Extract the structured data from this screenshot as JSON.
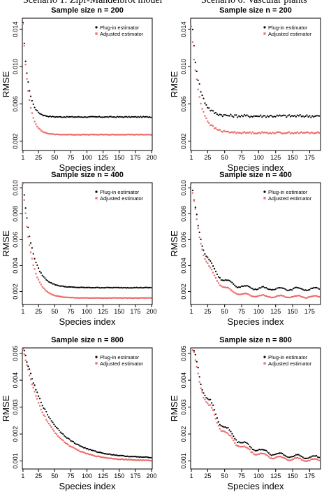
{
  "figure": {
    "column_headers": [
      "Scenario 1: Zipf-Mandelbrot model",
      "Scenario 6: Vascular plants"
    ]
  },
  "colors": {
    "plugin": "#000000",
    "adjusted": "#ee6a6a"
  },
  "chart_data": [
    {
      "type": "scatter",
      "title": "Sample size n = 200",
      "xlabel": "Species index",
      "ylabel": "RMSE",
      "xlim": [
        0,
        201
      ],
      "ylim": [
        0.001,
        0.0152
      ],
      "xticks": [
        1,
        25,
        50,
        75,
        100,
        125,
        150,
        175,
        200
      ],
      "yticks": [
        0.002,
        0.006,
        0.01,
        0.014
      ],
      "legend_position": "top-right",
      "series": [
        {
          "name": "Plug-in estimator",
          "marker": "dot",
          "curve": {
            "x_start": 1,
            "x_end": 200,
            "step": 2,
            "a": 0.0046,
            "b": 0.01,
            "tau": 8.0,
            "pattern": "smooth"
          }
        },
        {
          "name": "Adjusted estimator",
          "marker": "square",
          "curve": {
            "x_start": 1,
            "x_end": 200,
            "step": 2,
            "a": 0.0027,
            "b": 0.012,
            "tau": 8.5,
            "pattern": "smooth"
          }
        }
      ]
    },
    {
      "type": "scatter",
      "title": "Sample size n = 200",
      "xlabel": "Species index",
      "ylabel": "RMSE",
      "xlim": [
        0,
        191
      ],
      "ylim": [
        0.001,
        0.0152
      ],
      "xticks": [
        1,
        25,
        50,
        75,
        100,
        125,
        150,
        175
      ],
      "yticks": [
        0.002,
        0.006,
        0.01,
        0.014
      ],
      "legend_position": "top-right",
      "series": [
        {
          "name": "Plug-in estimator",
          "marker": "dot",
          "curve": {
            "x_start": 1,
            "x_end": 190,
            "step": 2,
            "a": 0.0047,
            "b": 0.011,
            "tau": 10.0,
            "pattern": "noisy"
          }
        },
        {
          "name": "Adjusted estimator",
          "marker": "square",
          "curve": {
            "x_start": 1,
            "x_end": 190,
            "step": 2,
            "a": 0.0029,
            "b": 0.0115,
            "tau": 11.0,
            "pattern": "noisy"
          }
        }
      ]
    },
    {
      "type": "scatter",
      "title": "Sample size n = 400",
      "xlabel": "Species index",
      "ylabel": "RMSE",
      "xlim": [
        0,
        201
      ],
      "ylim": [
        0.001,
        0.0104
      ],
      "xticks": [
        1,
        25,
        50,
        75,
        100,
        125,
        150,
        175,
        200
      ],
      "yticks": [
        0.002,
        0.004,
        0.006,
        0.008,
        0.01
      ],
      "legend_position": "top-right",
      "series": [
        {
          "name": "Plug-in estimator",
          "marker": "dot",
          "curve": {
            "x_start": 1,
            "x_end": 200,
            "step": 2,
            "a": 0.0023,
            "b": 0.0082,
            "tau": 14.0,
            "pattern": "smooth"
          }
        },
        {
          "name": "Adjusted estimator",
          "marker": "square",
          "curve": {
            "x_start": 1,
            "x_end": 200,
            "step": 2,
            "a": 0.0015,
            "b": 0.0088,
            "tau": 13.0,
            "pattern": "smooth"
          }
        }
      ]
    },
    {
      "type": "scatter",
      "title": "Sample size n = 400",
      "xlabel": "Species index",
      "ylabel": "RMSE",
      "xlim": [
        0,
        191
      ],
      "ylim": [
        0.001,
        0.0104
      ],
      "xticks": [
        1,
        25,
        50,
        75,
        100,
        125,
        150,
        175
      ],
      "yticks": [
        0.002,
        0.004,
        0.006,
        0.008,
        0.01
      ],
      "legend_position": "top-right",
      "series": [
        {
          "name": "Plug-in estimator",
          "marker": "dot",
          "curve": {
            "x_start": 1,
            "x_end": 190,
            "step": 2,
            "a": 0.0022,
            "b": 0.008,
            "tau": 20.0,
            "pattern": "stepped"
          }
        },
        {
          "name": "Adjusted estimator",
          "marker": "square",
          "curve": {
            "x_start": 1,
            "x_end": 190,
            "step": 2,
            "a": 0.0016,
            "b": 0.0085,
            "tau": 20.0,
            "pattern": "stepped"
          }
        }
      ]
    },
    {
      "type": "scatter",
      "title": "Sample size n = 800",
      "xlabel": "Species index",
      "ylabel": "RMSE",
      "xlim": [
        0,
        201
      ],
      "ylim": [
        0.0007,
        0.0052
      ],
      "xticks": [
        1,
        25,
        50,
        75,
        100,
        125,
        150,
        175,
        200
      ],
      "yticks": [
        0.001,
        0.002,
        0.003,
        0.004,
        0.005
      ],
      "legend_position": "top-right",
      "series": [
        {
          "name": "Plug-in estimator",
          "marker": "dot",
          "curve": {
            "x_start": 1,
            "x_end": 200,
            "step": 2,
            "a": 0.0011,
            "b": 0.0042,
            "tau": 40.0,
            "pattern": "smooth"
          }
        },
        {
          "name": "Adjusted estimator",
          "marker": "square",
          "curve": {
            "x_start": 1,
            "x_end": 200,
            "step": 2,
            "a": 0.001,
            "b": 0.0042,
            "tau": 36.0,
            "pattern": "smooth"
          }
        }
      ]
    },
    {
      "type": "scatter",
      "title": "Sample size n = 800",
      "xlabel": "Species index",
      "ylabel": "RMSE",
      "xlim": [
        0,
        191
      ],
      "ylim": [
        0.0007,
        0.0052
      ],
      "xticks": [
        1,
        25,
        50,
        75,
        100,
        125,
        150,
        175
      ],
      "yticks": [
        0.001,
        0.002,
        0.003,
        0.004,
        0.005
      ],
      "legend_position": "top-right",
      "series": [
        {
          "name": "Plug-in estimator",
          "marker": "dot",
          "curve": {
            "x_start": 1,
            "x_end": 190,
            "step": 2,
            "a": 0.0011,
            "b": 0.0042,
            "tau": 38.0,
            "pattern": "stepped"
          }
        },
        {
          "name": "Adjusted estimator",
          "marker": "square",
          "curve": {
            "x_start": 1,
            "x_end": 190,
            "step": 2,
            "a": 0.001,
            "b": 0.0042,
            "tau": 36.0,
            "pattern": "stepped"
          }
        }
      ]
    }
  ]
}
